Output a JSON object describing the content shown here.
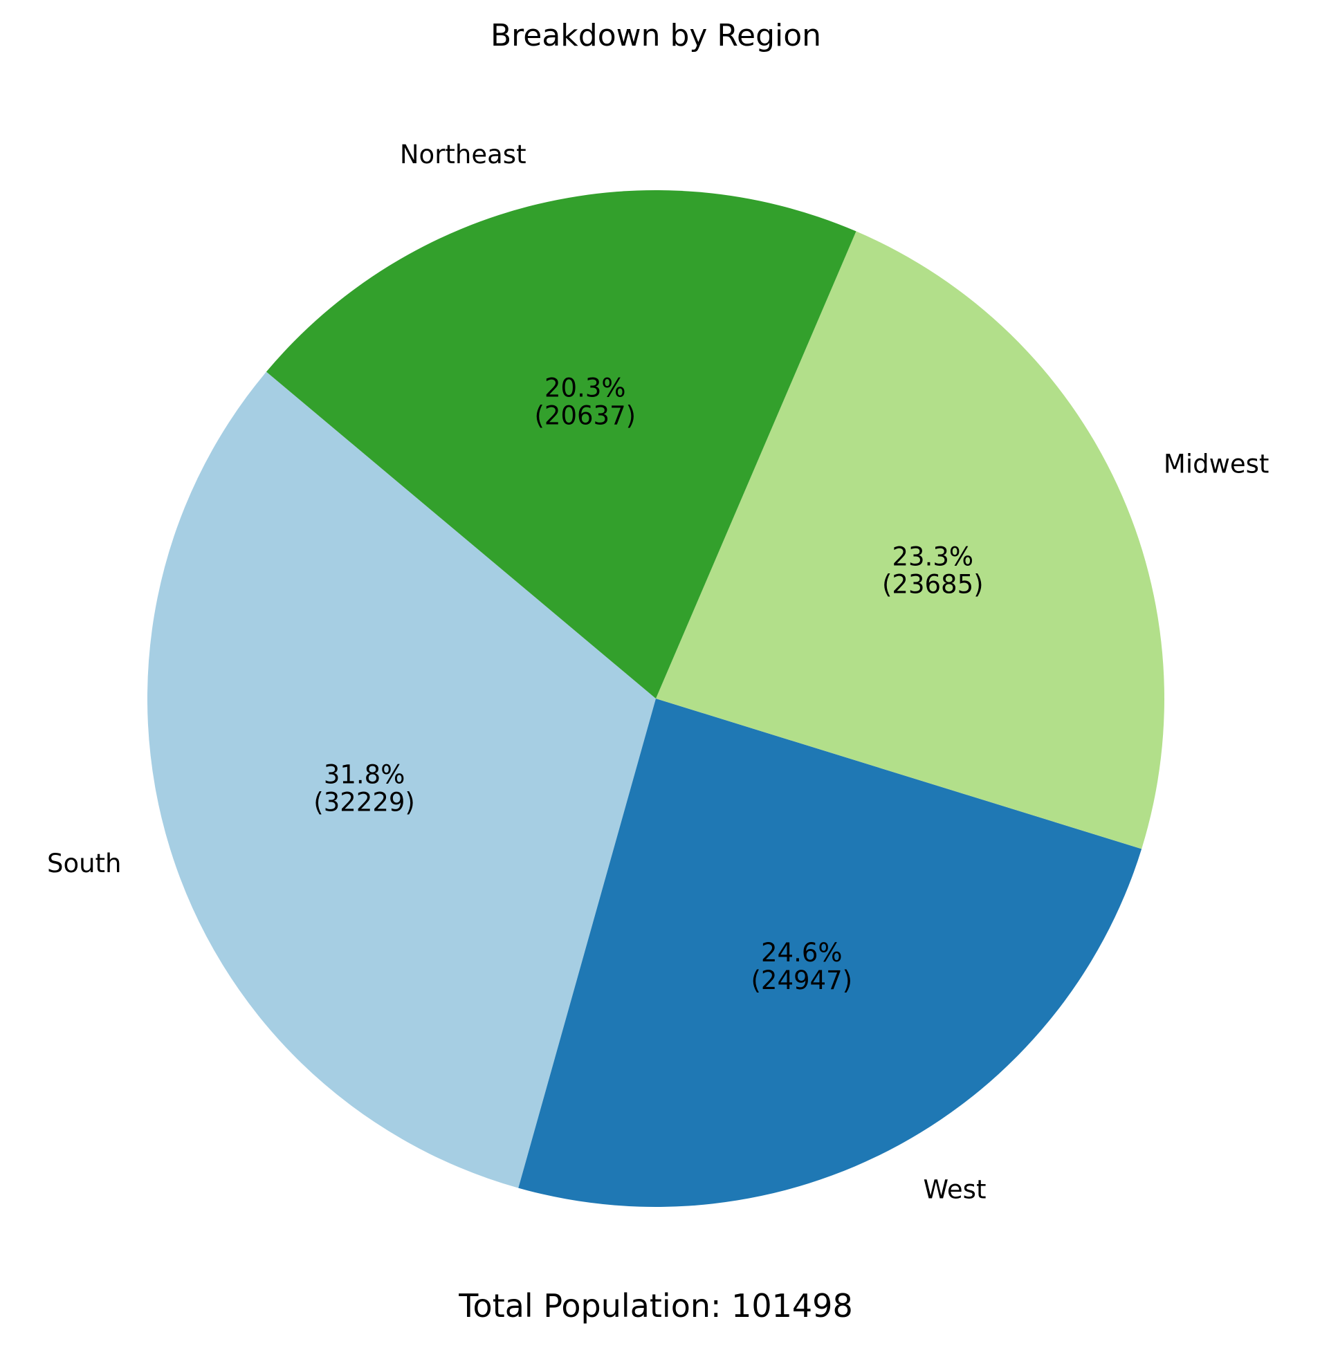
{
  "chart_data": {
    "type": "pie",
    "title": "Breakdown by Region",
    "footer": "Total Population: 101498",
    "start_angle_deg": 140,
    "direction": "counterclockwise",
    "slices": [
      {
        "label": "South",
        "value": 32229,
        "percent_label": "31.8%",
        "value_label": "(32229)",
        "color": "#a6cee3"
      },
      {
        "label": "West",
        "value": 24947,
        "percent_label": "24.6%",
        "value_label": "(24947)",
        "color": "#1f78b4"
      },
      {
        "label": "Midwest",
        "value": 23685,
        "percent_label": "23.3%",
        "value_label": "(23685)",
        "color": "#b2df8a"
      },
      {
        "label": "Northeast",
        "value": 20637,
        "percent_label": "20.3%",
        "value_label": "(20637)",
        "color": "#33a02c"
      }
    ]
  }
}
